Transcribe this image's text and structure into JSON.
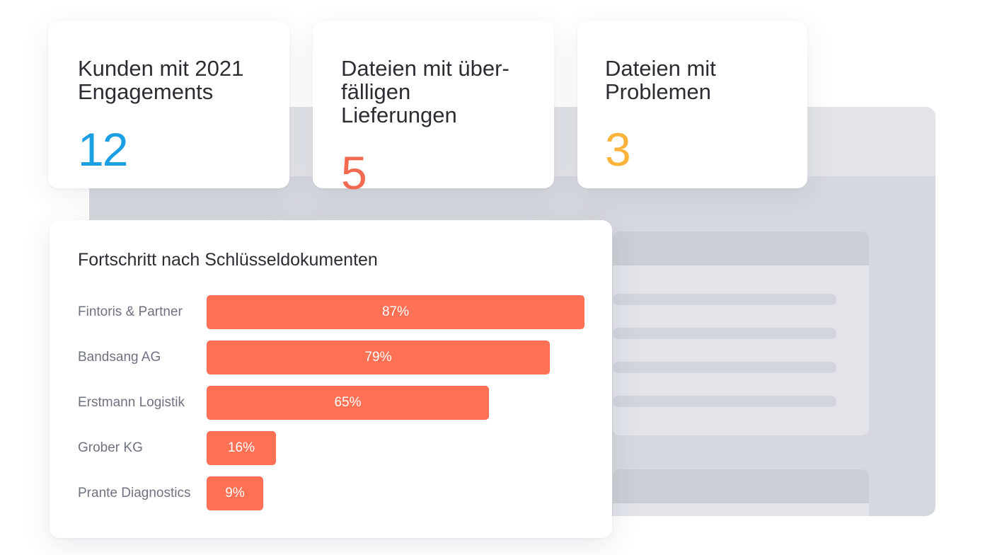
{
  "kpis": [
    {
      "label_line1": "Kunden mit 2021",
      "label_line2": "Engagements",
      "value": "12",
      "color": "#1a9fe3"
    },
    {
      "label_line1": "Dateien mit über-",
      "label_line2": "fälligen Lieferungen",
      "value": "5",
      "color": "#f26a4f"
    },
    {
      "label_line1": "Dateien mit",
      "label_line2": "Problemen",
      "value": "3",
      "color": "#fbb33b"
    }
  ],
  "chart_data": {
    "type": "bar",
    "orientation": "horizontal",
    "title": "Fortschritt nach Schlüsseldokumenten",
    "categories": [
      "Fintoris & Partner",
      "Bandsang AG",
      "Erstmann Logistik",
      "Grober KG",
      "Prante Diagnostics"
    ],
    "values": [
      87,
      79,
      65,
      16,
      9
    ],
    "value_labels": [
      "87%",
      "79%",
      "65%",
      "16%",
      "9%"
    ],
    "unit": "%",
    "xlim": [
      0,
      87
    ],
    "bar_color": "#ff7155"
  }
}
